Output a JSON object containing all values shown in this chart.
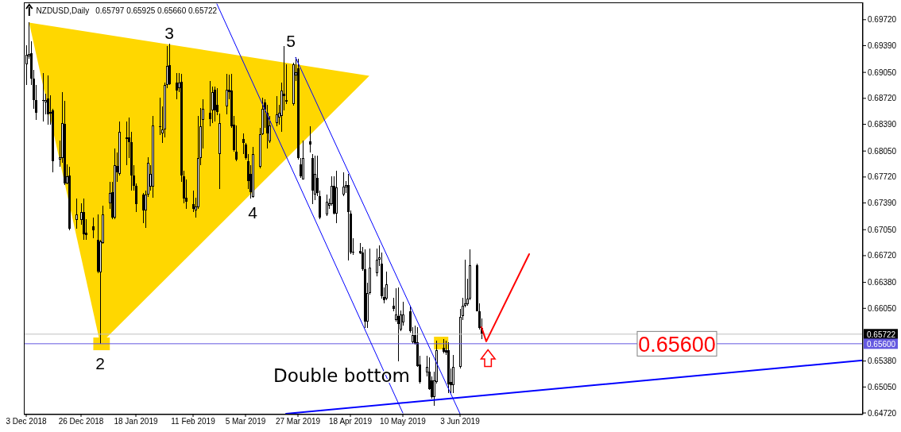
{
  "chart_data": {
    "type": "candlestick",
    "title": "NZDUSD,Daily",
    "subtitle": "0.65797 0.65925 0.65660 0.65722",
    "x": [
      "2018-12-03",
      "2018-12-04",
      "2018-12-05",
      "2018-12-06",
      "2018-12-07",
      "2018-12-10",
      "2018-12-11",
      "2018-12-12",
      "2018-12-13",
      "2018-12-14",
      "2018-12-17",
      "2018-12-18",
      "2018-12-19",
      "2018-12-20",
      "2018-12-21",
      "2018-12-24",
      "2018-12-26",
      "2018-12-27",
      "2018-12-28",
      "2018-12-31",
      "2019-01-02",
      "2019-01-03",
      "2019-01-04",
      "2019-01-07",
      "2019-01-08",
      "2019-01-09",
      "2019-01-10",
      "2019-01-11",
      "2019-01-14",
      "2019-01-15",
      "2019-01-16",
      "2019-01-17",
      "2019-01-18",
      "2019-01-21",
      "2019-01-22",
      "2019-01-23",
      "2019-01-24",
      "2019-01-25",
      "2019-01-28",
      "2019-01-29",
      "2019-01-30",
      "2019-01-31",
      "2019-02-01",
      "2019-02-04",
      "2019-02-05",
      "2019-02-06",
      "2019-02-07",
      "2019-02-08",
      "2019-02-11",
      "2019-02-12",
      "2019-02-13",
      "2019-02-14",
      "2019-02-15",
      "2019-02-18",
      "2019-02-19",
      "2019-02-20",
      "2019-02-21",
      "2019-02-22",
      "2019-02-25",
      "2019-02-26",
      "2019-02-27",
      "2019-02-28",
      "2019-03-01",
      "2019-03-04",
      "2019-03-05",
      "2019-03-06",
      "2019-03-07",
      "2019-03-08",
      "2019-03-11",
      "2019-03-12",
      "2019-03-13",
      "2019-03-14",
      "2019-03-15",
      "2019-03-18",
      "2019-03-19",
      "2019-03-20",
      "2019-03-21",
      "2019-03-22",
      "2019-03-25",
      "2019-03-26",
      "2019-03-27",
      "2019-03-28",
      "2019-03-29",
      "2019-04-01",
      "2019-04-02",
      "2019-04-03",
      "2019-04-04",
      "2019-04-05",
      "2019-04-08",
      "2019-04-09",
      "2019-04-10",
      "2019-04-11",
      "2019-04-12",
      "2019-04-15",
      "2019-04-16",
      "2019-04-17",
      "2019-04-18",
      "2019-04-19",
      "2019-04-22",
      "2019-04-23",
      "2019-04-24",
      "2019-04-25",
      "2019-04-26",
      "2019-04-29",
      "2019-04-30",
      "2019-05-01",
      "2019-05-02",
      "2019-05-03",
      "2019-05-06",
      "2019-05-07",
      "2019-05-08",
      "2019-05-09",
      "2019-05-10",
      "2019-05-13",
      "2019-05-14",
      "2019-05-15",
      "2019-05-16",
      "2019-05-17",
      "2019-05-20",
      "2019-05-21",
      "2019-05-22",
      "2019-05-23",
      "2019-05-24",
      "2019-05-27",
      "2019-05-28",
      "2019-05-29",
      "2019-05-30",
      "2019-05-31",
      "2019-06-03",
      "2019-06-04",
      "2019-06-05",
      "2019-06-06",
      "2019-06-07",
      "2019-06-10",
      "2019-06-11",
      "2019-06-12"
    ],
    "ohlc": [
      [
        0.6915,
        0.6939,
        0.6889,
        0.6927
      ],
      [
        0.6925,
        0.6969,
        0.6922,
        0.6928
      ],
      [
        0.6929,
        0.6945,
        0.6889,
        0.6897
      ],
      [
        0.6897,
        0.6908,
        0.6859,
        0.687
      ],
      [
        0.687,
        0.6889,
        0.6845,
        0.6854
      ],
      [
        0.6869,
        0.6904,
        0.6843,
        0.687
      ],
      [
        0.6867,
        0.6878,
        0.6852,
        0.687
      ],
      [
        0.6872,
        0.6901,
        0.6839,
        0.6852
      ],
      [
        0.6853,
        0.6876,
        0.6839,
        0.6855
      ],
      [
        0.6857,
        0.6859,
        0.6778,
        0.6792
      ],
      [
        0.6794,
        0.6818,
        0.6785,
        0.6797
      ],
      [
        0.6796,
        0.688,
        0.679,
        0.6841
      ],
      [
        0.684,
        0.6869,
        0.6762,
        0.6764
      ],
      [
        0.6764,
        0.6788,
        0.6763,
        0.6773
      ],
      [
        0.6774,
        0.6785,
        0.6704,
        0.6706
      ],
      [
        0.6717,
        0.6745,
        0.6706,
        0.6724
      ],
      [
        0.6717,
        0.6739,
        0.6711,
        0.6727
      ],
      [
        0.6727,
        0.6745,
        0.6692,
        0.6699
      ],
      [
        0.6701,
        0.6718,
        0.6692,
        0.6698
      ],
      [
        0.6709,
        0.672,
        0.6694,
        0.6704
      ],
      [
        0.6692,
        0.6724,
        0.665,
        0.6652
      ],
      [
        0.6651,
        0.6692,
        0.656,
        0.669
      ],
      [
        0.6688,
        0.6736,
        0.6687,
        0.6724
      ],
      [
        0.6739,
        0.6766,
        0.6731,
        0.6752
      ],
      [
        0.6753,
        0.6766,
        0.6718,
        0.672
      ],
      [
        0.672,
        0.6808,
        0.6718,
        0.6787
      ],
      [
        0.6786,
        0.6803,
        0.6766,
        0.6778
      ],
      [
        0.6776,
        0.6843,
        0.6774,
        0.6829
      ],
      [
        0.6822,
        0.6843,
        0.6787,
        0.682
      ],
      [
        0.6822,
        0.6848,
        0.6796,
        0.6816
      ],
      [
        0.6816,
        0.6829,
        0.6755,
        0.6774
      ],
      [
        0.6774,
        0.6787,
        0.6755,
        0.6761
      ],
      [
        0.6761,
        0.6764,
        0.6727,
        0.6738
      ],
      [
        0.675,
        0.6752,
        0.6713,
        0.6729
      ],
      [
        0.6729,
        0.6755,
        0.6707,
        0.675
      ],
      [
        0.675,
        0.6797,
        0.6747,
        0.679
      ],
      [
        0.676,
        0.6787,
        0.6755,
        0.6776
      ],
      [
        0.676,
        0.685,
        0.6746,
        0.6838
      ],
      [
        0.6835,
        0.6873,
        0.6825,
        0.6837
      ],
      [
        0.6827,
        0.6862,
        0.6815,
        0.6832
      ],
      [
        0.6832,
        0.6892,
        0.6822,
        0.6889
      ],
      [
        0.6889,
        0.6938,
        0.6885,
        0.6913
      ],
      [
        0.6914,
        0.6942,
        0.6889,
        0.689
      ],
      [
        0.6892,
        0.6904,
        0.6871,
        0.6882
      ],
      [
        0.6885,
        0.6904,
        0.688,
        0.6892
      ],
      [
        0.6893,
        0.6903,
        0.6766,
        0.6774
      ],
      [
        0.6773,
        0.678,
        0.6739,
        0.6745
      ],
      [
        0.6746,
        0.6769,
        0.6731,
        0.6741
      ],
      [
        0.6738,
        0.6755,
        0.6727,
        0.6731
      ],
      [
        0.6729,
        0.6746,
        0.672,
        0.6735
      ],
      [
        0.6734,
        0.685,
        0.6731,
        0.6796
      ],
      [
        0.6796,
        0.686,
        0.6787,
        0.6836
      ],
      [
        0.6845,
        0.6871,
        0.6808,
        0.6859
      ],
      [
        0.6854,
        0.6894,
        0.6836,
        0.6846
      ],
      [
        0.6857,
        0.6887,
        0.6841,
        0.688
      ],
      [
        0.6883,
        0.6887,
        0.6843,
        0.6857
      ],
      [
        0.6864,
        0.6885,
        0.6851,
        0.6855
      ],
      [
        0.6801,
        0.6853,
        0.6757,
        0.6841
      ],
      [
        0.6862,
        0.6903,
        0.6852,
        0.6883
      ],
      [
        0.6883,
        0.6902,
        0.6871,
        0.688
      ],
      [
        0.6882,
        0.6903,
        0.6834,
        0.6836
      ],
      [
        0.6839,
        0.685,
        0.6804,
        0.6806
      ],
      [
        0.6804,
        0.6838,
        0.6792,
        0.6794
      ],
      [
        0.682,
        0.6827,
        0.6801,
        0.6815
      ],
      [
        0.6813,
        0.6815,
        0.6794,
        0.6796
      ],
      [
        0.6792,
        0.6801,
        0.6757,
        0.6767
      ],
      [
        0.6776,
        0.6787,
        0.6745,
        0.6753
      ],
      [
        0.6747,
        0.681,
        0.6746,
        0.6801
      ],
      [
        0.6785,
        0.6834,
        0.6783,
        0.6826
      ],
      [
        0.6826,
        0.6873,
        0.6825,
        0.6859
      ],
      [
        0.6867,
        0.6871,
        0.6834,
        0.6858
      ],
      [
        0.6854,
        0.6864,
        0.6808,
        0.6827
      ],
      [
        0.6817,
        0.685,
        0.6815,
        0.6838
      ],
      [
        0.6841,
        0.6875,
        0.6836,
        0.6852
      ],
      [
        0.6848,
        0.6864,
        0.6839,
        0.6854
      ],
      [
        0.685,
        0.6892,
        0.6829,
        0.6882
      ],
      [
        0.6878,
        0.6938,
        0.6857,
        0.6875
      ],
      [
        0.6868,
        0.6915,
        0.6865,
        0.687
      ],
      [
        0.6865,
        0.6917,
        0.6863,
        0.6915
      ],
      [
        0.6901,
        0.6924,
        0.6894,
        0.6905
      ],
      [
        0.691,
        0.6922,
        0.6794,
        0.6796
      ],
      [
        0.6788,
        0.6796,
        0.6771,
        0.6773
      ],
      [
        0.6769,
        0.6818,
        0.6769,
        0.6796
      ],
      [
        0.6817,
        0.6836,
        0.6803,
        0.6813
      ],
      [
        0.6796,
        0.6801,
        0.6738,
        0.6755
      ],
      [
        0.675,
        0.6799,
        0.6743,
        0.6776
      ],
      [
        0.6771,
        0.6799,
        0.6748,
        0.6752
      ],
      [
        0.6748,
        0.6755,
        0.6718,
        0.672
      ],
      [
        0.6724,
        0.675,
        0.6722,
        0.6741
      ],
      [
        0.6736,
        0.6745,
        0.6732,
        0.6739
      ],
      [
        0.6738,
        0.6773,
        0.6736,
        0.6761
      ],
      [
        0.6761,
        0.6773,
        0.6724,
        0.6725
      ],
      [
        0.6725,
        0.678,
        0.6713,
        0.6759
      ],
      [
        0.675,
        0.6778,
        0.6748,
        0.676
      ],
      [
        0.6759,
        0.6767,
        0.6752,
        0.6762
      ],
      [
        0.6762,
        0.6776,
        0.6666,
        0.6727
      ],
      [
        0.6725,
        0.6729,
        0.6674,
        0.6676
      ],
      [
        0.6677,
        0.6694,
        0.6673,
        0.6676
      ],
      [
        0.6678,
        0.6688,
        0.6674,
        0.6675
      ],
      [
        0.6676,
        0.6683,
        0.6653,
        0.6655
      ],
      [
        0.6655,
        0.668,
        0.658,
        0.6588
      ],
      [
        0.6588,
        0.6638,
        0.658,
        0.6624
      ],
      [
        0.6624,
        0.6681,
        0.6622,
        0.6657
      ],
      [
        0.665,
        0.6681,
        0.6646,
        0.6667
      ],
      [
        0.6667,
        0.6685,
        0.6659,
        0.667
      ],
      [
        0.6662,
        0.6676,
        0.6617,
        0.662
      ],
      [
        0.6619,
        0.6632,
        0.6611,
        0.6615
      ],
      [
        0.6617,
        0.6652,
        0.6615,
        0.6636
      ],
      [
        0.6608,
        0.6618,
        0.6601,
        0.6604
      ],
      [
        0.659,
        0.6631,
        0.6588,
        0.6597
      ],
      [
        0.6595,
        0.6632,
        0.6538,
        0.6585
      ],
      [
        0.6578,
        0.6602,
        0.6576,
        0.6597
      ],
      [
        0.6587,
        0.6613,
        0.6583,
        0.6597
      ],
      [
        0.6601,
        0.6608,
        0.6574,
        0.6576
      ],
      [
        0.6562,
        0.6581,
        0.656,
        0.6571
      ],
      [
        0.6571,
        0.6583,
        0.6559,
        0.656
      ],
      [
        0.6562,
        0.6581,
        0.6531,
        0.6532
      ],
      [
        0.6534,
        0.6545,
        0.6509,
        0.6511
      ],
      [
        0.6524,
        0.6545,
        0.6518,
        0.6531
      ],
      [
        0.6525,
        0.6543,
        0.6501,
        0.6502
      ],
      [
        0.6513,
        0.6518,
        0.649,
        0.6492
      ],
      [
        0.6492,
        0.6525,
        0.6481,
        0.6513
      ],
      [
        0.6511,
        0.6564,
        0.6509,
        0.6552
      ],
      [
        0.6555,
        0.6566,
        0.6548,
        0.655
      ],
      [
        0.6552,
        0.6564,
        0.6546,
        0.6549
      ],
      [
        0.6552,
        0.6562,
        0.6497,
        0.6508
      ],
      [
        0.6511,
        0.6529,
        0.6497,
        0.6507
      ],
      [
        0.6507,
        0.6546,
        0.6497,
        0.6531
      ],
      [
        0.6531,
        0.6604,
        0.6529,
        0.6594
      ],
      [
        0.6595,
        0.6618,
        0.659,
        0.6608
      ],
      [
        0.6608,
        0.6667,
        0.6606,
        0.6611
      ],
      [
        0.661,
        0.6643,
        0.6608,
        0.6617
      ],
      [
        0.6617,
        0.668,
        0.6615,
        0.666
      ],
      [
        0.666,
        0.6662,
        0.6601,
        0.6601
      ],
      [
        0.6601,
        0.6611,
        0.6578,
        0.658
      ],
      [
        0.65797,
        0.65925,
        0.6566,
        0.65722
      ]
    ],
    "xlim": [
      "2018-12-02",
      "2019-11-19"
    ],
    "xticks": [
      {
        "value": "2018-12-03",
        "label": "3 Dec 2018"
      },
      {
        "value": "2018-12-26",
        "label": "26 Dec 2018"
      },
      {
        "value": "2019-01-18",
        "label": "18 Jan 2019"
      },
      {
        "value": "2019-02-11",
        "label": "11 Feb 2019"
      },
      {
        "value": "2019-03-05",
        "label": "5 Mar 2019"
      },
      {
        "value": "2019-03-27",
        "label": "27 Mar 2019"
      },
      {
        "value": "2019-04-18",
        "label": "18 Apr 2019"
      },
      {
        "value": "2019-05-10",
        "label": "10 May 2019"
      },
      {
        "value": "2019-06-03",
        "label": "3 Jun 2019"
      }
    ],
    "ylim": [
      0.647,
      0.6994
    ],
    "yticks": [
      {
        "value": 0.6472,
        "label": "0.64720"
      },
      {
        "value": 0.6505,
        "label": "0.65050"
      },
      {
        "value": 0.6538,
        "label": "0.65380"
      },
      {
        "value": 0.6605,
        "label": "0.66050"
      },
      {
        "value": 0.6638,
        "label": "0.66380"
      },
      {
        "value": 0.6672,
        "label": "0.66720"
      },
      {
        "value": 0.6705,
        "label": "0.67050"
      },
      {
        "value": 0.6739,
        "label": "0.67390"
      },
      {
        "value": 0.6772,
        "label": "0.67720"
      },
      {
        "value": 0.6805,
        "label": "0.68050"
      },
      {
        "value": 0.6839,
        "label": "0.68390"
      },
      {
        "value": 0.6872,
        "label": "0.68720"
      },
      {
        "value": 0.6905,
        "label": "0.69050"
      },
      {
        "value": 0.6939,
        "label": "0.69390"
      },
      {
        "value": 0.6972,
        "label": "0.69720"
      }
    ],
    "series": [
      {
        "type": "line",
        "x": [
          "2019-02-21",
          "2019-05-10"
        ],
        "values": [
          0.6992,
          0.6472
        ],
        "color": "#0000ff"
      },
      {
        "type": "line",
        "x": [
          "2019-03-26",
          "2019-06-03"
        ],
        "values": [
          0.6924,
          0.6471
        ],
        "color": "#0000ff"
      },
      {
        "type": "line",
        "x": [
          "2019-03-22",
          "2019-11-19"
        ],
        "values": [
          0.6471,
          0.6539
        ],
        "color": "#0000ff"
      },
      {
        "type": "line",
        "x": [
          "2019-06-12",
          "2019-06-14",
          "2019-07-02"
        ],
        "values": [
          0.6581,
          0.6563,
          0.6674
        ],
        "color": "#ff0000"
      }
    ],
    "ref_lines": [
      {
        "axis": "y",
        "value": 0.65722,
        "label": "0.65722",
        "color": "#c0c0c0"
      },
      {
        "axis": "y",
        "value": 0.656,
        "label": "0.65600",
        "color": "#6458e0"
      }
    ],
    "annotations": [
      {
        "text": "2",
        "x": "2019-01-03",
        "y": 0.656
      },
      {
        "text": "3",
        "x": "2019-02-01",
        "y": 0.6942
      },
      {
        "text": "4",
        "x": "2019-03-07",
        "y": 0.6745
      },
      {
        "text": "5",
        "x": "2019-03-21",
        "y": 0.6938
      },
      {
        "text": "Double bottom",
        "x": "2019-05-23",
        "y": 0.6481
      },
      {
        "text": "0.65600",
        "x": "2019-09-02",
        "y": 0.656
      }
    ]
  }
}
